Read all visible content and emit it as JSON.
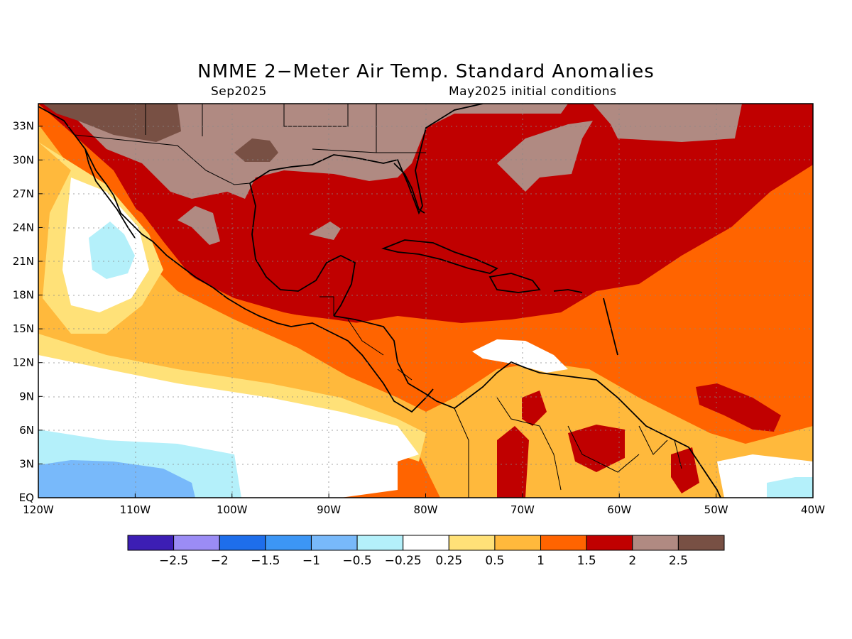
{
  "title": "NMME 2−Meter Air Temp. Standard Anomalies",
  "valid_month": "Sep2025",
  "init_conditions": "May2025 initial conditions",
  "chart_data": {
    "type": "heatmap",
    "projection": "equirectangular",
    "lon_range": [
      -120,
      -40
    ],
    "lat_range": [
      0,
      35
    ],
    "lat_ticks": [
      "EQ",
      "3N",
      "6N",
      "9N",
      "12N",
      "15N",
      "18N",
      "21N",
      "24N",
      "27N",
      "30N",
      "33N"
    ],
    "lon_ticks": [
      "120W",
      "110W",
      "100W",
      "90W",
      "80W",
      "70W",
      "60W",
      "50W",
      "40W"
    ],
    "grid": true,
    "legend_placement": "bottom",
    "colorbar": {
      "labels": [
        "−2.5",
        "−2",
        "−1.5",
        "−1",
        "−0.5",
        "−0.25",
        "0.25",
        "0.5",
        "1",
        "1.5",
        "2",
        "2.5"
      ],
      "colors": [
        "#3c1eb4",
        "#9b8cf5",
        "#1e6eeb",
        "#3c96f5",
        "#78b9fa",
        "#b4f0fa",
        "#ffffff",
        "#ffe178",
        "#ffb93c",
        "#ff6400",
        "#c00000",
        "#b08a82",
        "#785044"
      ]
    },
    "regions_summary": [
      {
        "area": "Southwest US / northern Mexico",
        "category": "2.5"
      },
      {
        "area": "Gulf of Mexico, Caribbean Sea, western Atlantic",
        "category": "1.5 to 2"
      },
      {
        "area": "Central Atlantic south of 27N",
        "category": "1 to 1.5"
      },
      {
        "area": "Eastern Pacific off Central America",
        "category": "0.5 to 1"
      },
      {
        "area": "Eastern equatorial Pacific 3-12N",
        "category": "-0.25 to 0.25"
      },
      {
        "area": "Far eastern tropical Pacific near equator",
        "category": "-1 to -0.5"
      }
    ]
  }
}
